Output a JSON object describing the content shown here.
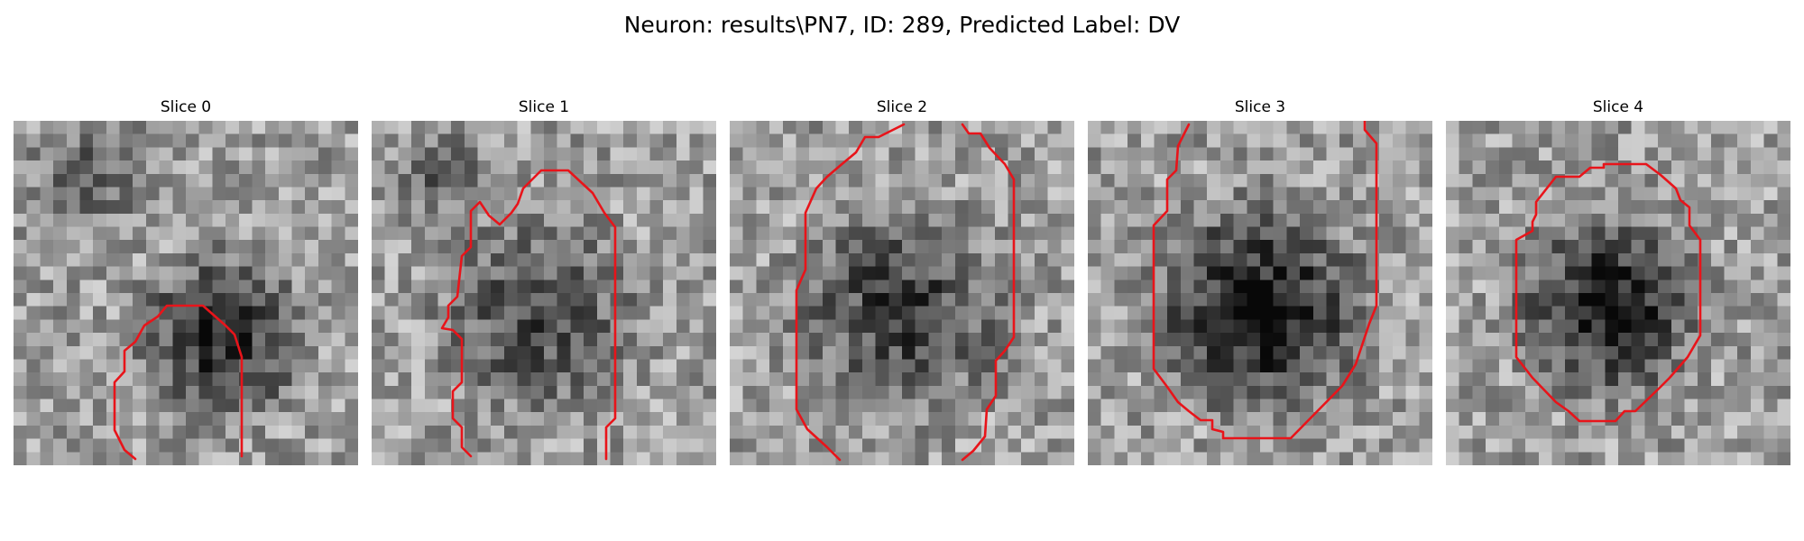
{
  "figure": {
    "title": "Neuron: results\\PN7, ID: 289, Predicted Label: DV"
  },
  "slices": [
    {
      "label": "Slice 0",
      "description": "gray-image",
      "darkness_profile": "dark-blob-right-center"
    },
    {
      "label": "Slice 1",
      "description": "gray-image",
      "darkness_profile": "dark-blob-center"
    },
    {
      "label": "Slice 2",
      "description": "gray-image",
      "darkness_profile": "dark-blob-center"
    },
    {
      "label": "Slice 3",
      "description": "gray-image",
      "darkness_profile": "dark-blob-center-large"
    },
    {
      "label": "Slice 4",
      "description": "gray-image",
      "darkness_profile": "dark-blob-center-small"
    }
  ],
  "style": {
    "contour_color": "#e8141a",
    "background": "#ffffff",
    "colormap": "gray"
  }
}
